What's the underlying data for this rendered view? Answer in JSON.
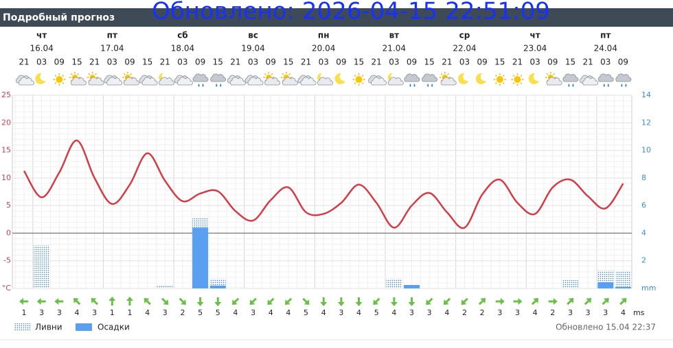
{
  "header": {
    "title": "Подробный прогноз",
    "overlay": "Обновлено: 2026-04-15 22:51:09"
  },
  "days": [
    {
      "name": "чт",
      "date": "16.04"
    },
    {
      "name": "пт",
      "date": "17.04"
    },
    {
      "name": "сб",
      "date": "18.04"
    },
    {
      "name": "вс",
      "date": "19.04"
    },
    {
      "name": "пн",
      "date": "20.04"
    },
    {
      "name": "вт",
      "date": "21.04"
    },
    {
      "name": "ср",
      "date": "22.04"
    },
    {
      "name": "чт",
      "date": "23.04"
    },
    {
      "name": "пт",
      "date": "24.04"
    }
  ],
  "chart_data": {
    "type": "line",
    "categories": [
      "21",
      "03",
      "09",
      "15",
      "21",
      "03",
      "09",
      "15",
      "21",
      "03",
      "09",
      "15",
      "21",
      "03",
      "09",
      "15",
      "21",
      "03",
      "09",
      "15",
      "21",
      "03",
      "09",
      "15",
      "21",
      "03",
      "09",
      "15",
      "21",
      "03",
      "09",
      "15",
      "21",
      "03",
      "09"
    ],
    "temperature": {
      "color": "#d63a45",
      "values": [
        11.3,
        6.5,
        11,
        16.8,
        10,
        5.3,
        8.8,
        14.5,
        9.5,
        5.8,
        7.2,
        7.6,
        4,
        2.3,
        6,
        8.3,
        3.8,
        3.5,
        5.5,
        8.8,
        5.5,
        1,
        5,
        7.3,
        3.8,
        1,
        7,
        9.7,
        5.5,
        3.5,
        8.3,
        9.7,
        6.7,
        4.5,
        9
      ]
    },
    "series": [
      {
        "name": "Ливни",
        "color": "#3b8de0",
        "axis": "y2",
        "values": [
          0,
          3.1,
          0,
          0,
          0,
          0,
          0,
          0,
          0.25,
          0,
          5.1,
          0.7,
          0.1,
          0,
          0,
          0,
          0,
          0,
          0,
          0,
          0,
          0.7,
          0,
          0,
          0,
          0,
          0,
          0,
          0,
          0,
          0,
          0.6,
          0,
          1.3,
          1.2
        ]
      },
      {
        "name": "Осадки",
        "color": "#5aa0f0",
        "axis": "y2",
        "values": [
          0,
          0,
          0,
          0,
          0,
          0,
          0,
          0,
          0,
          0,
          4.4,
          0.2,
          0,
          0,
          0,
          0,
          0,
          0,
          0,
          0,
          0,
          0,
          0.25,
          0,
          0,
          0,
          0,
          0,
          0,
          0,
          0,
          0,
          0,
          0.45,
          0.1
        ]
      }
    ],
    "ylim": [
      -10,
      25
    ],
    "yticks": [
      {
        "value": -10,
        "label": "°C"
      },
      -5,
      0,
      5,
      10,
      15,
      20,
      25
    ],
    "y2lim": [
      0,
      14
    ],
    "y2ticks": [
      {
        "value": 0,
        "label": "mm"
      },
      2,
      4,
      6,
      8,
      10,
      12,
      14
    ],
    "grid": true
  },
  "wind": {
    "unit": "ms",
    "values": [
      1,
      3,
      3,
      4,
      3,
      1,
      1,
      4,
      3,
      2,
      5,
      5,
      4,
      3,
      4,
      4,
      5,
      4,
      3,
      4,
      5,
      4,
      3,
      3,
      4,
      2,
      2,
      3,
      3,
      4,
      2,
      3,
      3,
      3,
      4
    ]
  },
  "footer": "Обновлено 15.04 22:37"
}
